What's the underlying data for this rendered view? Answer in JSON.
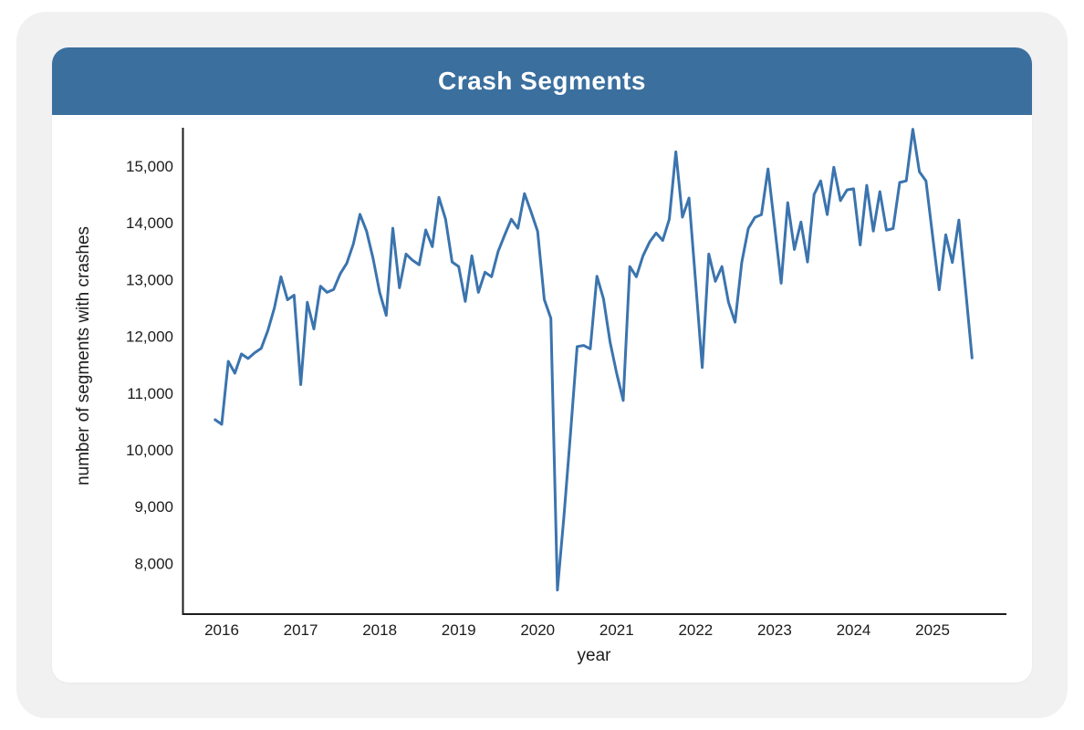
{
  "card": {
    "title": "Crash Segments"
  },
  "colors": {
    "header_bg": "#3a6f9e",
    "card_bg": "#f1f1f2",
    "panel_bg": "#ffffff",
    "line": "#3b74ae",
    "axis": "#1c1c1c",
    "tick_text": "#1c1c1c"
  },
  "chart_data": {
    "type": "line",
    "title": "Crash Segments",
    "xlabel": "year",
    "ylabel": "number of segments with crashes",
    "legend": null,
    "grid": false,
    "x_ticks": [
      {
        "value": 2016,
        "label": "2016"
      },
      {
        "value": 2017,
        "label": "2017"
      },
      {
        "value": 2018,
        "label": "2018"
      },
      {
        "value": 2019,
        "label": "2019"
      },
      {
        "value": 2020,
        "label": "2020"
      },
      {
        "value": 2021,
        "label": "2021"
      },
      {
        "value": 2022,
        "label": "2022"
      },
      {
        "value": 2023,
        "label": "2023"
      },
      {
        "value": 2024,
        "label": "2024"
      },
      {
        "value": 2025,
        "label": "2025"
      }
    ],
    "y_ticks": [
      {
        "value": 8000,
        "label": "8,000"
      },
      {
        "value": 9000,
        "label": "9,000"
      },
      {
        "value": 10000,
        "label": "10,000"
      },
      {
        "value": 11000,
        "label": "11,000"
      },
      {
        "value": 12000,
        "label": "12,000"
      },
      {
        "value": 13000,
        "label": "13,000"
      },
      {
        "value": 14000,
        "label": "14,000"
      },
      {
        "value": 15000,
        "label": "15,000"
      }
    ],
    "ylim": [
      7400,
      15700
    ],
    "xlim_years": [
      2015.75,
      2025.75
    ],
    "series": [
      {
        "name": "number of segments with crashes",
        "frequency": "monthly",
        "start_month": "2015-12",
        "end_month": "2025-07",
        "values": [
          10530,
          10450,
          11560,
          11350,
          11690,
          11610,
          11710,
          11790,
          12100,
          12500,
          13050,
          12645,
          12725,
          11150,
          12600,
          12130,
          12885,
          12775,
          12825,
          13100,
          13290,
          13630,
          14150,
          13855,
          13370,
          12775,
          12370,
          13905,
          12855,
          13450,
          13340,
          13260,
          13875,
          13580,
          14450,
          14065,
          13310,
          13230,
          12615,
          13420,
          12775,
          13130,
          13050,
          13500,
          13790,
          14065,
          13905,
          14515,
          14195,
          13850,
          12650,
          12320,
          7530,
          8840,
          10300,
          11820,
          11840,
          11780,
          13060,
          12660,
          11900,
          11350,
          10870,
          13230,
          13050,
          13420,
          13660,
          13820,
          13690,
          14065,
          15250,
          14100,
          14435,
          12950,
          11450,
          13450,
          12970,
          13230,
          12600,
          12250,
          13300,
          13900,
          14095,
          14145,
          14950,
          13950,
          12935,
          14355,
          13530,
          14015,
          13310,
          14500,
          14740,
          14145,
          14980,
          14390,
          14580,
          14600,
          13610,
          14660,
          13855,
          14550,
          13870,
          13900,
          14710,
          14740,
          15650,
          14900,
          14740,
          13780,
          12820,
          13790,
          13300,
          14050,
          12850,
          11620
        ]
      }
    ]
  }
}
